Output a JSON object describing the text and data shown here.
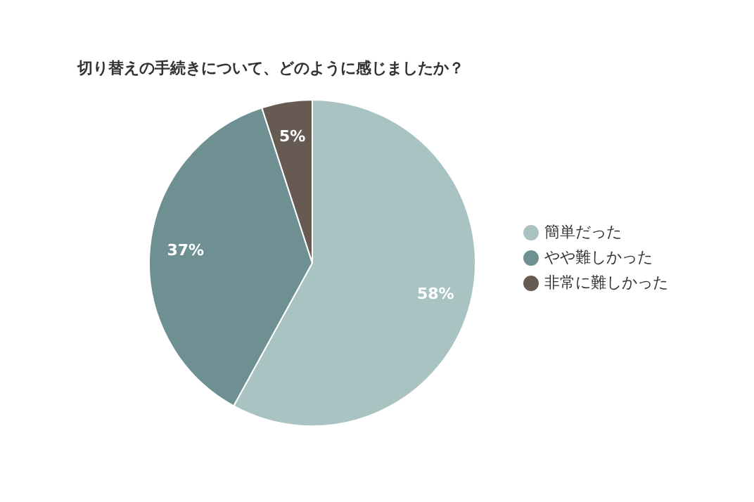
{
  "chart_data": {
    "type": "pie",
    "title": "切り替えの手続きについて、どのように感じましたか？",
    "categories": [
      "簡単だった",
      "やや難しかった",
      "非常に難しかった"
    ],
    "values": [
      58,
      37,
      5
    ],
    "value_labels": [
      "58%",
      "37%",
      "5%"
    ],
    "colors": [
      "#a9c2c2",
      "#6e9093",
      "#665a52"
    ],
    "legend": "right"
  }
}
